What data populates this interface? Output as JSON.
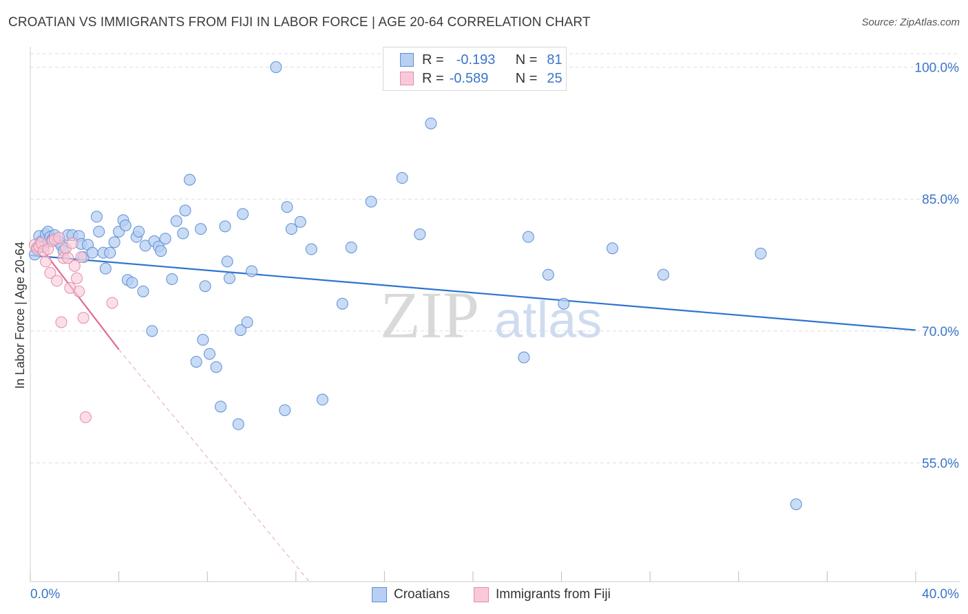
{
  "title": "CROATIAN VS IMMIGRANTS FROM FIJI IN LABOR FORCE | AGE 20-64 CORRELATION CHART",
  "source": "Source: ZipAtlas.com",
  "watermark": {
    "zip": "ZIP",
    "atlas": "atlas"
  },
  "colors": {
    "blue_fill": "#b7cff2",
    "blue_stroke": "#5b8fd6",
    "blue_line": "#2f73cf",
    "pink_fill": "#f8c9d8",
    "pink_stroke": "#e58aa8",
    "pink_line": "#e06a95",
    "axis_text": "#3a74c8",
    "grid": "#dedede"
  },
  "legend": {
    "rows": [
      {
        "r_label": "R =",
        "r_value": "-0.193",
        "n_label": "N =",
        "n_value": "81"
      },
      {
        "r_label": "R =",
        "r_value": "-0.589",
        "n_label": "N =",
        "n_value": "25"
      }
    ]
  },
  "bottom_legend": {
    "croatians": "Croatians",
    "fiji": "Immigrants from Fiji"
  },
  "chart_data": {
    "type": "scatter",
    "title": "CROATIAN VS IMMIGRANTS FROM FIJI IN LABOR FORCE | AGE 20-64 CORRELATION CHART",
    "xlabel": "",
    "ylabel": "In Labor Force | Age 20-64",
    "xlim": [
      0,
      40
    ],
    "ylim": [
      41.5,
      102
    ],
    "x_tick_labels": [
      "0.0%",
      "40.0%"
    ],
    "y_ticks": [
      55,
      70,
      85,
      100
    ],
    "y_tick_labels": [
      "55.0%",
      "70.0%",
      "85.0%",
      "100.0%"
    ],
    "grid": true,
    "series": [
      {
        "name": "Croatians",
        "R": -0.193,
        "N": 81,
        "trend": {
          "x": [
            0,
            40
          ],
          "y": [
            78.6,
            70.1
          ]
        },
        "points": [
          [
            0.2,
            78.7
          ],
          [
            0.3,
            79.5
          ],
          [
            0.4,
            80.8
          ],
          [
            0.5,
            80.2
          ],
          [
            0.6,
            79.6
          ],
          [
            0.7,
            81.0
          ],
          [
            0.8,
            81.3
          ],
          [
            0.9,
            80.7
          ],
          [
            1.0,
            80.4
          ],
          [
            1.1,
            80.9
          ],
          [
            1.3,
            80.1
          ],
          [
            1.4,
            79.7
          ],
          [
            1.5,
            79.1
          ],
          [
            1.7,
            80.9
          ],
          [
            1.9,
            80.9
          ],
          [
            2.2,
            80.8
          ],
          [
            2.3,
            79.9
          ],
          [
            2.4,
            78.4
          ],
          [
            2.6,
            79.8
          ],
          [
            2.8,
            78.9
          ],
          [
            3.0,
            83.0
          ],
          [
            3.1,
            81.3
          ],
          [
            3.3,
            78.9
          ],
          [
            3.4,
            77.1
          ],
          [
            3.6,
            78.9
          ],
          [
            3.8,
            80.1
          ],
          [
            4.0,
            81.3
          ],
          [
            4.2,
            82.6
          ],
          [
            4.3,
            82.0
          ],
          [
            4.4,
            75.8
          ],
          [
            4.6,
            75.5
          ],
          [
            4.8,
            80.7
          ],
          [
            4.9,
            81.3
          ],
          [
            5.1,
            74.5
          ],
          [
            5.2,
            79.7
          ],
          [
            5.5,
            70.0
          ],
          [
            5.6,
            80.2
          ],
          [
            5.8,
            79.6
          ],
          [
            5.9,
            79.1
          ],
          [
            6.1,
            80.5
          ],
          [
            6.4,
            75.9
          ],
          [
            6.6,
            82.5
          ],
          [
            6.9,
            81.1
          ],
          [
            7.0,
            83.7
          ],
          [
            7.2,
            87.2
          ],
          [
            7.5,
            66.5
          ],
          [
            7.7,
            81.6
          ],
          [
            7.8,
            69.0
          ],
          [
            7.9,
            75.1
          ],
          [
            8.1,
            67.4
          ],
          [
            8.4,
            65.9
          ],
          [
            8.6,
            61.4
          ],
          [
            8.8,
            81.9
          ],
          [
            8.9,
            77.9
          ],
          [
            9.0,
            76.0
          ],
          [
            9.4,
            59.4
          ],
          [
            9.5,
            70.1
          ],
          [
            9.6,
            83.3
          ],
          [
            9.8,
            71.0
          ],
          [
            10.0,
            76.8
          ],
          [
            11.1,
            100.0
          ],
          [
            11.5,
            61.0
          ],
          [
            11.6,
            84.1
          ],
          [
            11.8,
            81.6
          ],
          [
            12.2,
            82.4
          ],
          [
            12.7,
            79.3
          ],
          [
            13.2,
            62.2
          ],
          [
            14.1,
            73.1
          ],
          [
            14.5,
            79.5
          ],
          [
            15.4,
            84.7
          ],
          [
            16.8,
            87.4
          ],
          [
            17.6,
            81.0
          ],
          [
            18.1,
            93.6
          ],
          [
            22.3,
            67.0
          ],
          [
            22.5,
            80.7
          ],
          [
            23.4,
            76.4
          ],
          [
            24.1,
            73.1
          ],
          [
            26.3,
            79.4
          ],
          [
            28.6,
            76.4
          ],
          [
            33.0,
            78.8
          ],
          [
            34.6,
            50.3
          ]
        ]
      },
      {
        "name": "Immigrants from Fiji",
        "R": -0.589,
        "N": 25,
        "trend": {
          "x": [
            0.2,
            4.0
          ],
          "y": [
            80.4,
            67.9
          ]
        },
        "trend_extension": {
          "x": [
            4.0,
            12.6
          ],
          "y": [
            67.9,
            41.5
          ]
        },
        "points": [
          [
            0.2,
            79.8
          ],
          [
            0.3,
            79.3
          ],
          [
            0.4,
            79.6
          ],
          [
            0.5,
            80.0
          ],
          [
            0.6,
            79.1
          ],
          [
            0.7,
            77.9
          ],
          [
            0.8,
            79.3
          ],
          [
            0.9,
            76.6
          ],
          [
            1.0,
            80.2
          ],
          [
            1.1,
            80.4
          ],
          [
            1.2,
            75.7
          ],
          [
            1.3,
            80.6
          ],
          [
            1.4,
            71.0
          ],
          [
            1.5,
            78.3
          ],
          [
            1.6,
            79.4
          ],
          [
            1.7,
            78.3
          ],
          [
            1.8,
            74.9
          ],
          [
            1.9,
            80.0
          ],
          [
            2.0,
            77.4
          ],
          [
            2.1,
            76.0
          ],
          [
            2.2,
            74.5
          ],
          [
            2.3,
            78.4
          ],
          [
            2.4,
            71.5
          ],
          [
            2.5,
            60.2
          ],
          [
            3.7,
            73.2
          ]
        ]
      }
    ]
  }
}
